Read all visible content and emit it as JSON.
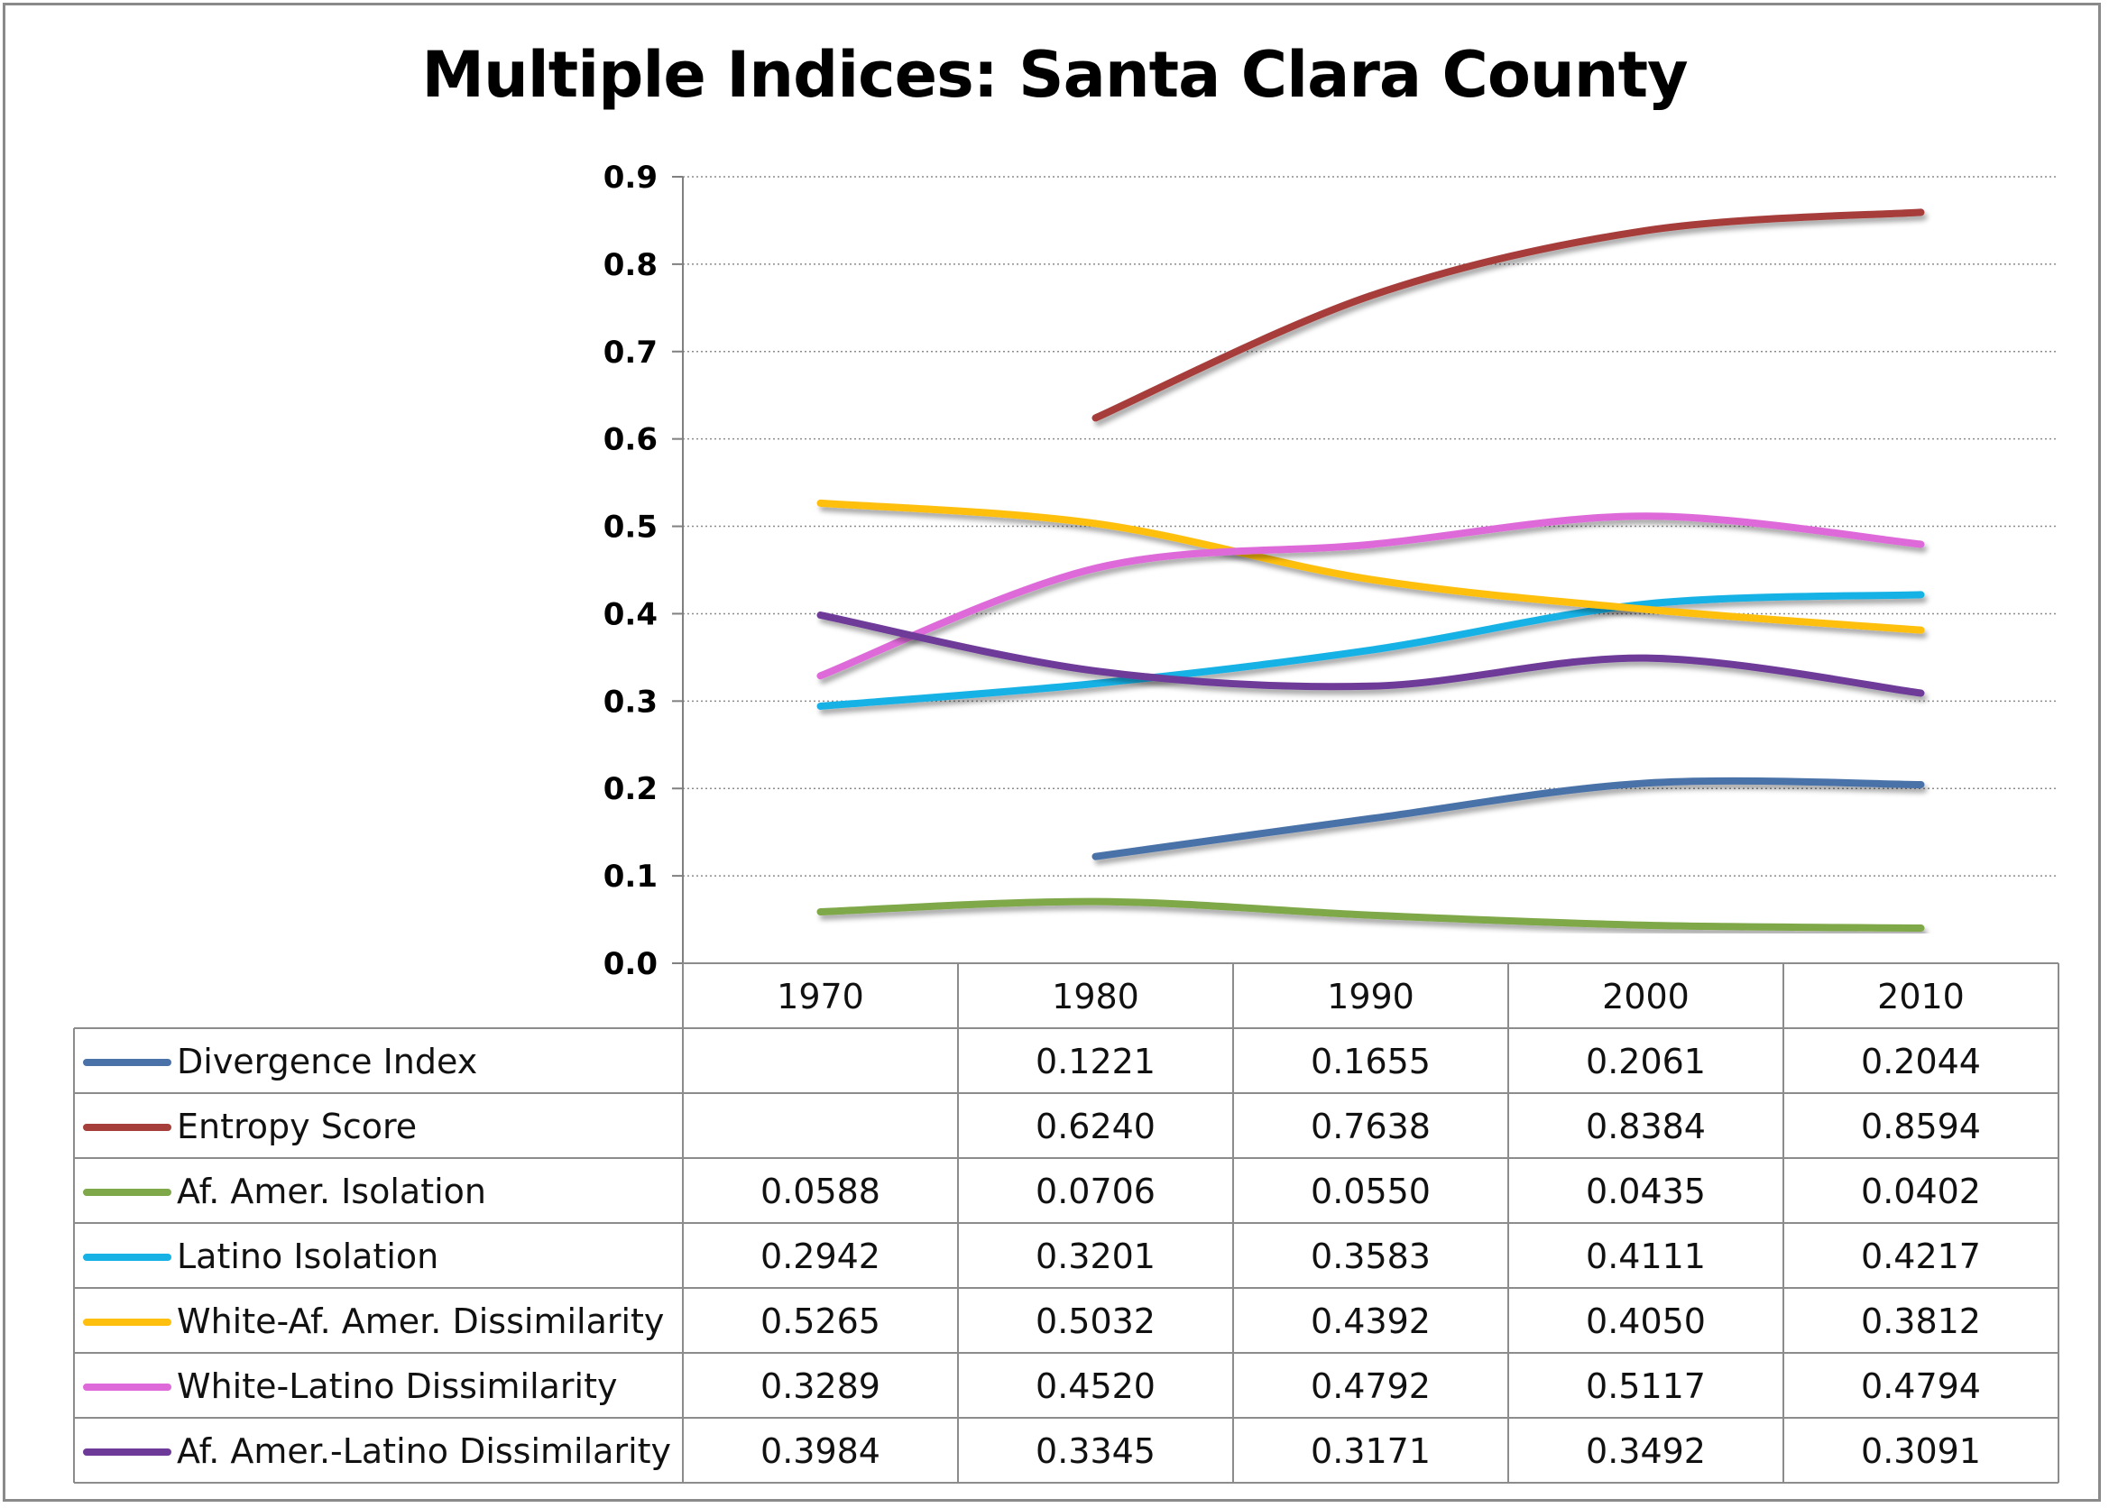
{
  "chart_data": {
    "type": "line",
    "title": "Multiple Indices: Santa Clara County",
    "categories": [
      "1970",
      "1980",
      "1990",
      "2000",
      "2010"
    ],
    "ylim": [
      0,
      0.9
    ],
    "yticks": [
      "0.0",
      "0.1",
      "0.2",
      "0.3",
      "0.4",
      "0.5",
      "0.6",
      "0.7",
      "0.8",
      "0.9"
    ],
    "grid": true,
    "legend": "data-table-below",
    "series": [
      {
        "name": "Divergence Index",
        "color": "#4a72a8",
        "values": [
          null,
          0.1221,
          0.1655,
          0.2061,
          0.2044
        ],
        "labels": [
          "",
          "0.1221",
          "0.1655",
          "0.2061",
          "0.2044"
        ]
      },
      {
        "name": "Entropy Score",
        "color": "#a63e3b",
        "values": [
          null,
          0.624,
          0.7638,
          0.8384,
          0.8594
        ],
        "labels": [
          "",
          "0.6240",
          "0.7638",
          "0.8384",
          "0.8594"
        ]
      },
      {
        "name": "Af. Amer.  Isolation",
        "color": "#7fa84a",
        "values": [
          0.0588,
          0.0706,
          0.055,
          0.0435,
          0.0402
        ],
        "labels": [
          "0.0588",
          "0.0706",
          "0.0550",
          "0.0435",
          "0.0402"
        ]
      },
      {
        "name": "Latino Isolation",
        "color": "#16b2e6",
        "values": [
          0.2942,
          0.3201,
          0.3583,
          0.4111,
          0.4217
        ],
        "labels": [
          "0.2942",
          "0.3201",
          "0.3583",
          "0.4111",
          "0.4217"
        ]
      },
      {
        "name": "White-Af. Amer.  Dissimilarity",
        "color": "#ffbf0e",
        "values": [
          0.5265,
          0.5032,
          0.4392,
          0.405,
          0.3812
        ],
        "labels": [
          "0.5265",
          "0.5032",
          "0.4392",
          "0.4050",
          "0.3812"
        ]
      },
      {
        "name": "White-Latino Dissimilarity",
        "color": "#de6ad9",
        "values": [
          0.3289,
          0.452,
          0.4792,
          0.5117,
          0.4794
        ],
        "labels": [
          "0.3289",
          "0.4520",
          "0.4792",
          "0.5117",
          "0.4794"
        ]
      },
      {
        "name": "Af. Amer.-Latino Dissimilarity",
        "color": "#6e3a99",
        "values": [
          0.3984,
          0.3345,
          0.3171,
          0.3492,
          0.3091
        ],
        "labels": [
          "0.3984",
          "0.3345",
          "0.3171",
          "0.3492",
          "0.3091"
        ]
      }
    ]
  }
}
